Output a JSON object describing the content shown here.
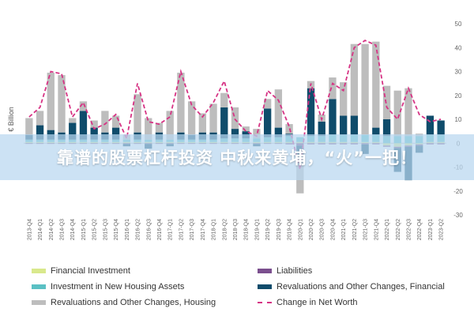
{
  "chart_data": {
    "type": "bar",
    "stacked": true,
    "ylabel": "€ Billion",
    "ylim": [
      -30,
      50
    ],
    "yticks": [
      -30,
      -20,
      -10,
      0,
      10,
      20,
      30,
      40,
      50
    ],
    "grid": false,
    "legend_position": "bottom",
    "categories": [
      "2013-Q4",
      "2014-Q1",
      "2014-Q2",
      "2014-Q3",
      "2014-Q4",
      "2015-Q1",
      "2015-Q2",
      "2015-Q3",
      "2015-Q4",
      "2016-Q1",
      "2016-Q2",
      "2016-Q3",
      "2016-Q4",
      "2017-Q1",
      "2017-Q2",
      "2017-Q3",
      "2017-Q4",
      "2018-Q1",
      "2018-Q2",
      "2018-Q3",
      "2018-Q4",
      "2019-Q1",
      "2019-Q2",
      "2019-Q3",
      "2019-Q4",
      "2020-Q1",
      "2020-Q2",
      "2020-Q3",
      "2020-Q4",
      "2021-Q1",
      "2021-Q2",
      "2021-Q3",
      "2021-Q4",
      "2022-Q1",
      "2022-Q2",
      "2022-Q3",
      "2022-Q4",
      "2023-Q1",
      "2023-Q2"
    ],
    "series": [
      {
        "name": "Financial Investment",
        "kind": "bar",
        "color": "#d9e88c",
        "values": [
          0.5,
          0.5,
          0.5,
          0.5,
          0.5,
          0.5,
          0.5,
          0.5,
          0.5,
          0.5,
          0.5,
          0.5,
          0.5,
          0.5,
          0.5,
          0.5,
          0.5,
          0.5,
          0.5,
          0.5,
          0.5,
          0.5,
          0.5,
          0.5,
          0.5,
          0.5,
          0.5,
          0.5,
          0.5,
          0.5,
          0.5,
          0.5,
          0.5,
          -1,
          -1.5,
          -1,
          -0.5,
          0.5,
          0.5
        ]
      },
      {
        "name": "Liabilities",
        "kind": "bar",
        "color": "#7b4f8e",
        "values": [
          -0.3,
          -0.3,
          -0.3,
          -0.3,
          -0.3,
          -0.3,
          -0.3,
          -0.3,
          -0.3,
          -0.3,
          -0.3,
          -0.3,
          -0.3,
          -0.3,
          -0.3,
          -0.3,
          -0.3,
          -0.3,
          -0.3,
          -0.3,
          -0.3,
          -0.3,
          -0.3,
          -0.3,
          -0.5,
          -1,
          -0.5,
          -0.5,
          -0.5,
          -0.5,
          -0.5,
          -0.5,
          -0.5,
          -0.5,
          -0.5,
          -0.5,
          -0.5,
          -0.5,
          -0.5
        ]
      },
      {
        "name": "Investment in New Housing Assets",
        "kind": "bar",
        "color": "#5bc0c4",
        "values": [
          1,
          1,
          1,
          1,
          1,
          1,
          1,
          1,
          1,
          1,
          1,
          1,
          1,
          1,
          1,
          1,
          1,
          1,
          1.5,
          1.5,
          1.5,
          1.5,
          2,
          2,
          2.5,
          2,
          2.5,
          2.5,
          3,
          3,
          3,
          3,
          3,
          3,
          3,
          3,
          3,
          3,
          3
        ]
      },
      {
        "name": "Revaluations and Other Changes, Financial",
        "kind": "bar",
        "color": "#0f4c6b",
        "values": [
          2,
          6,
          4,
          3,
          7,
          12,
          5,
          3,
          5,
          -1,
          3,
          -2,
          3,
          -1,
          3,
          2,
          3,
          3,
          13,
          4,
          3,
          -1,
          12,
          4,
          1,
          -4,
          20,
          6,
          15,
          8,
          8,
          -4,
          3,
          7,
          -10,
          -14,
          -3,
          8,
          6
        ]
      },
      {
        "name": "Revaluations and Other Changes, Housing",
        "kind": "bar",
        "color": "#bdbdbd",
        "values": [
          7,
          6,
          24,
          24,
          2,
          4,
          3,
          9,
          5,
          2,
          16,
          9,
          4,
          12,
          25,
          14,
          8,
          12,
          6,
          9,
          2,
          4,
          4,
          16,
          4,
          -16,
          3,
          3,
          9,
          14,
          30,
          38,
          36,
          14,
          19,
          20,
          1,
          0,
          0
        ]
      },
      {
        "name": "Change in Net Worth",
        "kind": "line",
        "color": "#d63384",
        "values": [
          11,
          15,
          30,
          29,
          11,
          17,
          6,
          8,
          12,
          2,
          25,
          9,
          8,
          11,
          30,
          16,
          11,
          17,
          26,
          10,
          5,
          3,
          22,
          18,
          7,
          -11,
          25,
          10,
          25,
          22,
          40,
          43,
          41,
          15,
          10,
          23,
          12,
          9,
          10
        ]
      }
    ]
  },
  "banner": {
    "text": "靠谱的股票杠杆投资 中秋来黄埔，“火”一把！"
  },
  "legend": [
    {
      "label": "Financial Investment",
      "color": "#d9e88c",
      "kind": "bar"
    },
    {
      "label": "Liabilities",
      "color": "#7b4f8e",
      "kind": "bar"
    },
    {
      "label": "Investment in New Housing Assets",
      "color": "#5bc0c4",
      "kind": "bar"
    },
    {
      "label": "Revaluations and Other Changes, Financial",
      "color": "#0f4c6b",
      "kind": "bar"
    },
    {
      "label": "Revaluations and Other Changes, Housing",
      "color": "#bdbdbd",
      "kind": "bar"
    },
    {
      "label": "Change in Net Worth",
      "color": "#d63384",
      "kind": "line"
    }
  ]
}
